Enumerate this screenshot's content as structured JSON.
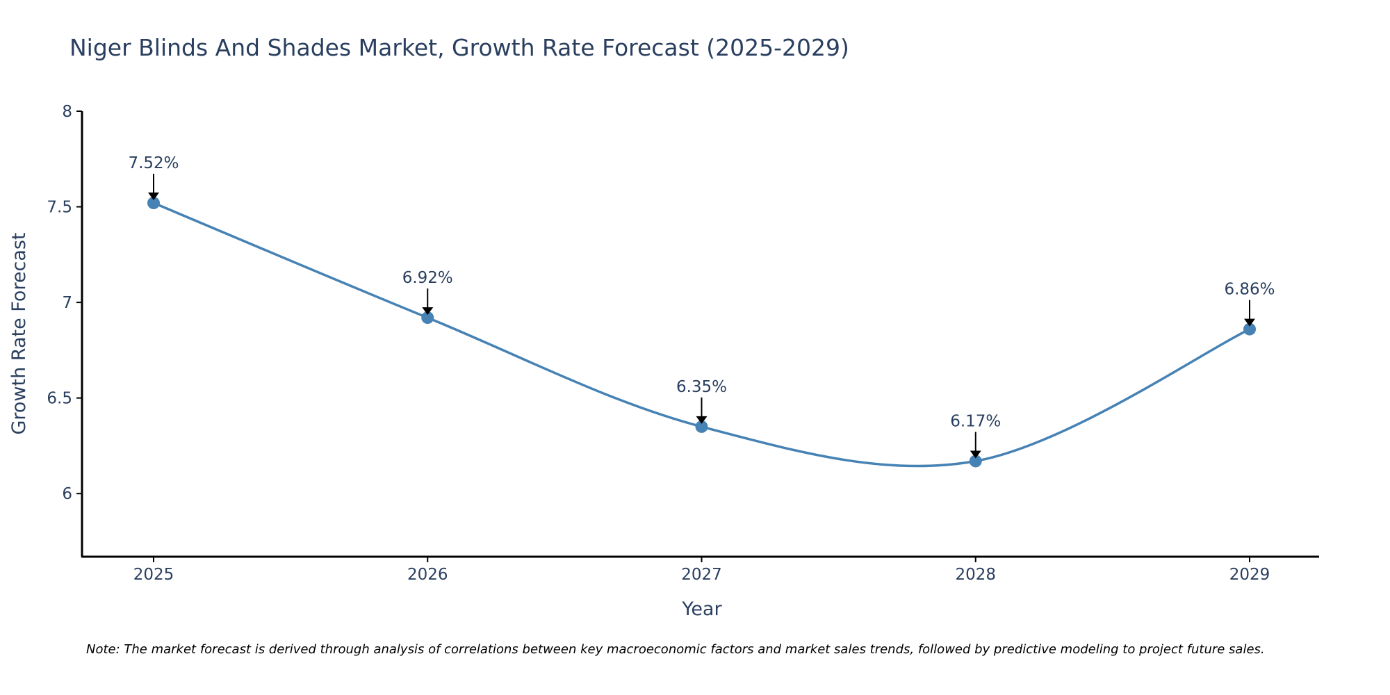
{
  "chart_data": {
    "type": "line",
    "title": "Niger Blinds And Shades Market, Growth Rate Forecast (2025-2029)",
    "xlabel": "Year",
    "ylabel": "Growth Rate Forecast",
    "categories": [
      "2025",
      "2026",
      "2027",
      "2028",
      "2029"
    ],
    "values": [
      7.52,
      6.92,
      6.35,
      6.17,
      6.86
    ],
    "data_labels": [
      "7.52%",
      "6.92%",
      "6.35%",
      "6.17%",
      "6.86%"
    ],
    "yticks": [
      6,
      6.5,
      7,
      7.5,
      8
    ],
    "ytick_labels": [
      "6",
      "6.5",
      "7",
      "7.5",
      "8"
    ],
    "ylim": [
      5.67,
      8.0
    ],
    "grid": false,
    "line_shape": "spline",
    "series_color": "#4682b4",
    "note": "Note: The market forecast is derived through analysis of correlations between key macroeconomic factors and market sales trends, followed by predictive modeling to project future sales."
  }
}
